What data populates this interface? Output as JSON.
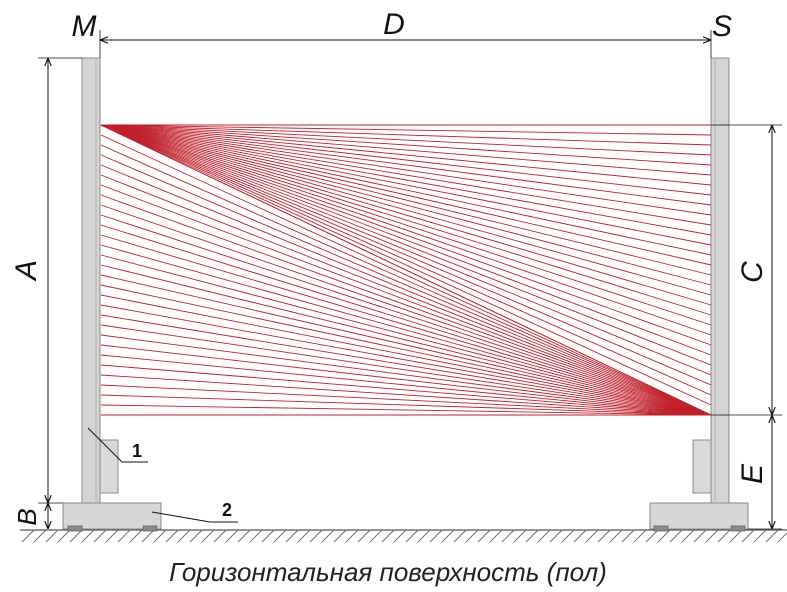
{
  "labels": {
    "master": "M",
    "slave": "S",
    "distance": "D",
    "height_total": "A",
    "base_height": "B",
    "beam_zone": "C",
    "bottom_gap": "E",
    "callout_1": "1",
    "callout_2": "2"
  },
  "caption": "Горизонтальная поверхность (пол)",
  "beams": {
    "count": 30
  },
  "colors": {
    "beam": "#c0202a",
    "post": "#d3d3d3",
    "post_edge": "#8a8a8a",
    "dimension": "#111111",
    "ground_hatch": "#6a6a6a"
  }
}
